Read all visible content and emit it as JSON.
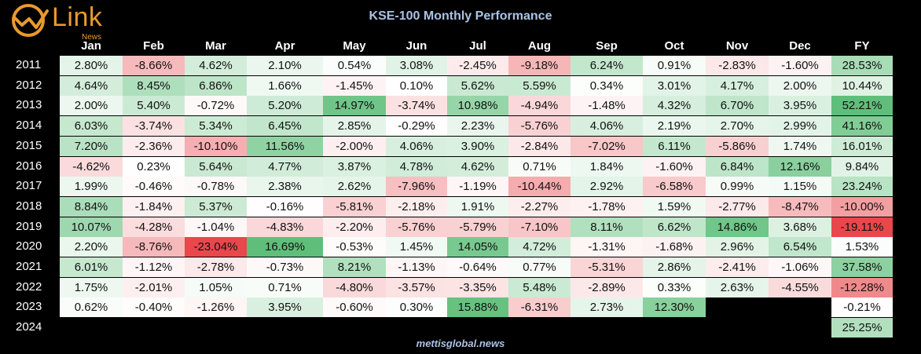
{
  "title": "KSE-100 Monthly Performance",
  "footer": "mettisglobal.news",
  "logo": {
    "text": "Link",
    "sub": "News",
    "icon": "link-news-logo-icon"
  },
  "colors": {
    "background": "#000000",
    "title": "#a9c3e6",
    "logo": "#e99a2c",
    "positive": "#5fbf7a",
    "negative": "#e8474c",
    "neutral": "#ffffff"
  },
  "chart_data": {
    "type": "table",
    "title": "KSE-100 Monthly Performance",
    "columns": [
      "Jan",
      "Feb",
      "Mar",
      "Apr",
      "May",
      "Jun",
      "Jul",
      "Aug",
      "Sep",
      "Oct",
      "Nov",
      "Dec",
      "FY"
    ],
    "rows": [
      {
        "year": "2011",
        "values": [
          "2.80%",
          "-8.66%",
          "4.62%",
          "2.10%",
          "0.54%",
          "3.08%",
          "-2.45%",
          "-9.18%",
          "6.24%",
          "0.91%",
          "-2.83%",
          "-1.60%",
          "28.53%"
        ]
      },
      {
        "year": "2012",
        "values": [
          "4.64%",
          "8.45%",
          "6.86%",
          "1.66%",
          "-1.45%",
          "0.10%",
          "5.62%",
          "5.59%",
          "0.34%",
          "3.01%",
          "4.17%",
          "2.00%",
          "10.44%"
        ]
      },
      {
        "year": "2013",
        "values": [
          "2.00%",
          "5.40%",
          "-0.72%",
          "5.20%",
          "14.97%",
          "-3.74%",
          "10.98%",
          "-4.94%",
          "-1.48%",
          "4.32%",
          "6.70%",
          "3.95%",
          "52.21%"
        ]
      },
      {
        "year": "2014",
        "values": [
          "6.03%",
          "-3.74%",
          "5.34%",
          "6.45%",
          "2.85%",
          "-0.29%",
          "2.23%",
          "-5.76%",
          "4.06%",
          "2.19%",
          "2.70%",
          "2.99%",
          "41.16%"
        ]
      },
      {
        "year": "2015",
        "values": [
          "7.20%",
          "-2.36%",
          "-10.10%",
          "11.56%",
          "-2.00%",
          "4.06%",
          "3.90%",
          "-2.84%",
          "-7.02%",
          "6.11%",
          "-5.86%",
          "1.74%",
          "16.01%"
        ]
      },
      {
        "year": "2016",
        "values": [
          "-4.62%",
          "0.23%",
          "5.64%",
          "4.77%",
          "3.87%",
          "4.78%",
          "4.62%",
          "0.71%",
          "1.84%",
          "-1.60%",
          "6.84%",
          "12.16%",
          "9.84%"
        ]
      },
      {
        "year": "2017",
        "values": [
          "1.99%",
          "-0.46%",
          "-0.78%",
          "2.38%",
          "2.62%",
          "-7.96%",
          "-1.19%",
          "-10.44%",
          "2.92%",
          "-6.58%",
          "0.99%",
          "1.15%",
          "23.24%"
        ]
      },
      {
        "year": "2018",
        "values": [
          "8.84%",
          "-1.84%",
          "5.37%",
          "-0.16%",
          "-5.81%",
          "-2.18%",
          "1.91%",
          "-2.27%",
          "-1.78%",
          "1.59%",
          "-2.77%",
          "-8.47%",
          "-10.00%"
        ]
      },
      {
        "year": "2019",
        "values": [
          "10.07%",
          "-4.28%",
          "-1.04%",
          "-4.83%",
          "-2.20%",
          "-5.76%",
          "-5.79%",
          "-7.10%",
          "8.11%",
          "6.62%",
          "14.86%",
          "3.68%",
          "-19.11%"
        ]
      },
      {
        "year": "2020",
        "values": [
          "2.20%",
          "-8.76%",
          "-23.04%",
          "16.69%",
          "-0.53%",
          "1.45%",
          "14.05%",
          "4.72%",
          "-1.31%",
          "-1.68%",
          "2.96%",
          "6.54%",
          "1.53%"
        ]
      },
      {
        "year": "2021",
        "values": [
          "6.01%",
          "-1.12%",
          "-2.78%",
          "-0.73%",
          "8.21%",
          "-1.13%",
          "-0.64%",
          "0.77%",
          "-5.31%",
          "2.86%",
          "-2.41%",
          "-1.06%",
          "37.58%"
        ]
      },
      {
        "year": "2022",
        "values": [
          "1.75%",
          "-2.01%",
          "1.05%",
          "0.71%",
          "-4.80%",
          "-3.57%",
          "-3.35%",
          "5.48%",
          "-2.89%",
          "0.33%",
          "2.63%",
          "-4.55%",
          "-12.28%"
        ]
      },
      {
        "year": "2023",
        "values": [
          "0.62%",
          "-0.40%",
          "-1.26%",
          "3.95%",
          "-0.60%",
          "0.30%",
          "15.88%",
          "-6.31%",
          "2.73%",
          "12.30%",
          "",
          "",
          "-0.21%"
        ]
      },
      {
        "year": "2024",
        "values": [
          "",
          "",
          "",
          "",
          "",
          "",
          "",
          "",
          "",
          "",
          "",
          "",
          "25.25%"
        ]
      }
    ]
  }
}
